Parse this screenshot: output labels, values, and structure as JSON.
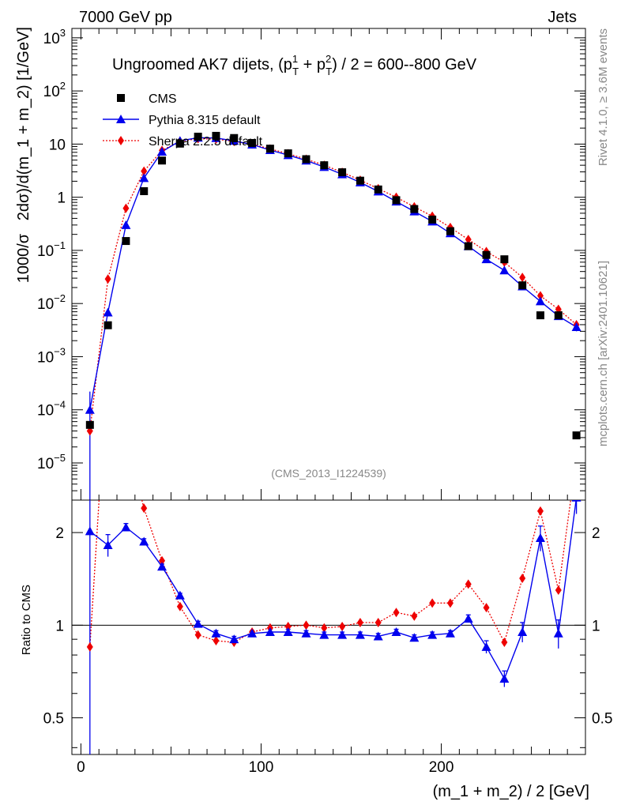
{
  "header": {
    "left": "7000 GeV pp",
    "right": "Jets"
  },
  "side": {
    "rivet": "Rivet 4.1.0, ≥ 3.6M events",
    "mcplots": "mcplots.cern.ch [arXiv:2401.10621]"
  },
  "colors": {
    "cms": "#000000",
    "pythia": "#0000ee",
    "sherpa": "#ee0000"
  },
  "chart_data": {
    "type": "scatter",
    "title": "Ungroomed AK7 dijets, (p_T^1 + p_T^2) / 2 = 600--800 GeV",
    "title_parts": {
      "pre": "Ungroomed AK7 dijets, (p",
      "sub1": "T",
      "sup1": "1",
      "plus": " + p",
      "sub2": "T",
      "sup2": "2",
      "post": ") / 2 = 600--800 GeV"
    },
    "analysis_label": "(CMS_2013_I1224539)",
    "xlabel": "(m_1 + m_2) / 2 [GeV]",
    "ylabel": "1000/σ   2dσ)/d(m_1 + m_2) [1/GeV]",
    "ratio_ylabel": "Ratio to CMS",
    "xlim": [
      -5,
      280
    ],
    "ylim": [
      2e-06,
      1500
    ],
    "yscale": "log",
    "ratio_ylim": [
      0.38,
      2.55
    ],
    "ratio_yscale": "log",
    "x_ticks": [
      0,
      100,
      200
    ],
    "y_ticks": [
      {
        "v": 1e-05,
        "base": "10",
        "exp": "−5"
      },
      {
        "v": 0.0001,
        "base": "10",
        "exp": "−4"
      },
      {
        "v": 0.001,
        "base": "10",
        "exp": "−3"
      },
      {
        "v": 0.01,
        "base": "10",
        "exp": "−2"
      },
      {
        "v": 0.1,
        "base": "10",
        "exp": "−1"
      },
      {
        "v": 1,
        "base": "1",
        "exp": ""
      },
      {
        "v": 10,
        "base": "10",
        "exp": ""
      },
      {
        "v": 100,
        "base": "10",
        "exp": "2"
      },
      {
        "v": 1000,
        "base": "10",
        "exp": "3"
      }
    ],
    "ratio_ticks": [
      {
        "v": 0.5,
        "label": "0.5"
      },
      {
        "v": 1,
        "label": "1"
      },
      {
        "v": 2,
        "label": "2"
      }
    ],
    "legend": [
      {
        "name": "CMS",
        "marker": "square",
        "line": "none"
      },
      {
        "name": "Pythia 8.315 default",
        "marker": "triangle",
        "line": "solid"
      },
      {
        "name": "Sherpa 2.2.5 default",
        "marker": "diamond",
        "line": "dotted"
      }
    ],
    "x": [
      5,
      15,
      25,
      35,
      45,
      55,
      65,
      75,
      85,
      95,
      105,
      115,
      125,
      135,
      145,
      155,
      165,
      175,
      185,
      195,
      205,
      215,
      225,
      235,
      245,
      255,
      265,
      275
    ],
    "series": [
      {
        "name": "CMS",
        "values": [
          5.2e-05,
          0.0039,
          0.15,
          1.3,
          4.9,
          10.2,
          13.8,
          14.3,
          13.0,
          10.5,
          8.2,
          6.7,
          5.2,
          4.0,
          2.95,
          2.05,
          1.4,
          0.88,
          0.6,
          0.38,
          0.23,
          0.12,
          0.082,
          0.068,
          0.022,
          0.006,
          0.006,
          3.3e-05
        ]
      },
      {
        "name": "Pythia 8.315 default",
        "values": [
          0.0001,
          0.0068,
          0.3,
          2.3,
          7.2,
          11.5,
          13.2,
          13.0,
          11.5,
          9.8,
          7.7,
          6.2,
          4.9,
          3.7,
          2.7,
          1.9,
          1.28,
          0.83,
          0.54,
          0.35,
          0.21,
          0.12,
          0.068,
          0.042,
          0.021,
          0.011,
          0.0058,
          0.0036
        ],
        "yerr": [
          0.00012,
          0.0007,
          0.02,
          0.1,
          0.2,
          0.3,
          0.3,
          0.3,
          0.3,
          0.2,
          0.2,
          0.15,
          0.1,
          0.1,
          0.08,
          0.06,
          0.04,
          0.03,
          0.02,
          0.015,
          0.01,
          0.006,
          0.004,
          0.003,
          0.002,
          0.001,
          0.0009,
          0.0006
        ]
      },
      {
        "name": "Sherpa 2.2.5 default",
        "values": [
          4e-05,
          0.029,
          0.62,
          3.1,
          7.6,
          11.3,
          12.6,
          12.4,
          11.2,
          10.0,
          8.1,
          6.6,
          5.2,
          4.0,
          2.95,
          2.1,
          1.45,
          1.0,
          0.66,
          0.44,
          0.27,
          0.16,
          0.095,
          0.06,
          0.031,
          0.014,
          0.0078,
          0.004
        ]
      }
    ],
    "ratio": [
      {
        "name": "Pythia 8.315 default",
        "values": [
          2.02,
          1.82,
          2.08,
          1.87,
          1.55,
          1.25,
          1.01,
          0.94,
          0.9,
          0.94,
          0.95,
          0.95,
          0.94,
          0.93,
          0.93,
          0.93,
          0.92,
          0.95,
          0.91,
          0.93,
          0.94,
          1.05,
          0.85,
          0.67,
          0.95,
          1.92,
          0.94,
          2.6
        ],
        "err": [
          2.0,
          0.15,
          0.06,
          0.04,
          0.03,
          0.02,
          0.02,
          0.02,
          0.02,
          0.02,
          0.02,
          0.02,
          0.02,
          0.02,
          0.02,
          0.02,
          0.02,
          0.02,
          0.02,
          0.02,
          0.02,
          0.03,
          0.04,
          0.04,
          0.07,
          0.18,
          0.1,
          0.3
        ]
      },
      {
        "name": "Sherpa 2.2.5 default",
        "values": [
          0.85,
          7.4,
          4.1,
          2.4,
          1.62,
          1.15,
          0.93,
          0.89,
          0.88,
          0.95,
          0.98,
          0.99,
          1.0,
          0.98,
          0.99,
          1.02,
          1.02,
          1.1,
          1.07,
          1.18,
          1.18,
          1.36,
          1.14,
          0.88,
          1.42,
          2.35,
          1.3,
          3.5
        ]
      }
    ]
  }
}
